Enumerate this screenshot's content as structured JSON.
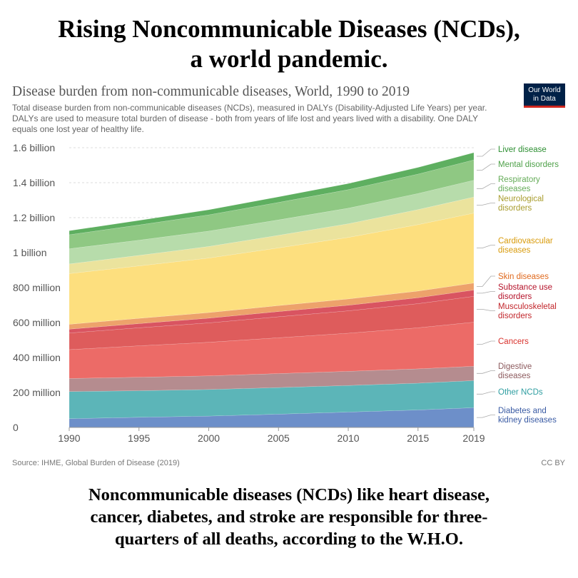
{
  "headline": {
    "line1": "Rising Noncommunicable Diseases (NCDs),",
    "line2": "a world pandemic."
  },
  "chart_title": "Disease burden from non-communicable diseases, World, 1990 to 2019",
  "chart_subtitle": "Total disease burden from non-communicable diseases (NCDs), measured in DALYs (Disability-Adjusted Life Years) per year. DALYs are used to measure total burden of disease - both from years of life lost and years lived with a disability. One DALY equals one lost year of healthy life.",
  "logo": {
    "line1": "Our World",
    "line2": "in Data",
    "bg_color": "#002147",
    "accent_color": "#ce261e"
  },
  "source": "Source: IHME, Global Burden of Disease (2019)",
  "license": "CC BY",
  "caption": {
    "line1": "Noncommunicable diseases (NCDs) like heart disease,",
    "line2": "cancer, diabetes, and stroke are responsible for three-",
    "line3": "quarters of all deaths, according to the W.H.O."
  },
  "chart_data": {
    "type": "area",
    "stacked": true,
    "x": [
      1990,
      1995,
      2000,
      2005,
      2010,
      2015,
      2019
    ],
    "xticks": [
      "1990",
      "1995",
      "2000",
      "2005",
      "2010",
      "2015",
      "2019"
    ],
    "ylim": [
      0,
      1600000000
    ],
    "yticks": [
      {
        "value": 0,
        "label": "0"
      },
      {
        "value": 200000000,
        "label": "200 million"
      },
      {
        "value": 400000000,
        "label": "400 million"
      },
      {
        "value": 600000000,
        "label": "600 million"
      },
      {
        "value": 800000000,
        "label": "800 million"
      },
      {
        "value": 1000000000,
        "label": "1 billion"
      },
      {
        "value": 1200000000,
        "label": "1.2 billion"
      },
      {
        "value": 1400000000,
        "label": "1.4 billion"
      },
      {
        "value": 1600000000,
        "label": "1.6 billion"
      }
    ],
    "grid": true,
    "legend_position": "right",
    "series": [
      {
        "name": "Diabetes and kidney diseases",
        "color": "#6d8fc9",
        "label_color": "#3a5ba4",
        "values": [
          50000000,
          58000000,
          65000000,
          76000000,
          88000000,
          100000000,
          113000000
        ]
      },
      {
        "name": "Other NCDs",
        "color": "#5cb5b8",
        "label_color": "#2f9ea1",
        "values": [
          155000000,
          152000000,
          152000000,
          152000000,
          152000000,
          153000000,
          155000000
        ]
      },
      {
        "name": "Digestive diseases",
        "color": "#b58c8f",
        "label_color": "#8d5b5e",
        "values": [
          75000000,
          77000000,
          78000000,
          80000000,
          81000000,
          82000000,
          82000000
        ]
      },
      {
        "name": "Cancers",
        "color": "#ec6b67",
        "label_color": "#d9322d",
        "values": [
          165000000,
          180000000,
          192000000,
          205000000,
          218000000,
          235000000,
          252000000
        ]
      },
      {
        "name": "Musculoskeletal disorders",
        "color": "#de5c5c",
        "label_color": "#c2272c",
        "values": [
          95000000,
          103000000,
          111000000,
          120000000,
          128000000,
          138000000,
          148000000
        ]
      },
      {
        "name": "Substance use disorders",
        "color": "#d95461",
        "label_color": "#b5132a",
        "values": [
          22000000,
          24000000,
          27000000,
          30000000,
          32000000,
          34000000,
          36000000
        ]
      },
      {
        "name": "Skin diseases",
        "color": "#eda26b",
        "label_color": "#e0691d",
        "values": [
          28000000,
          30000000,
          32000000,
          34000000,
          36000000,
          38000000,
          40000000
        ]
      },
      {
        "name": "Cardiovascular diseases",
        "color": "#fddf7e",
        "label_color": "#d99b0b",
        "values": [
          290000000,
          300000000,
          312000000,
          330000000,
          352000000,
          380000000,
          400000000
        ]
      },
      {
        "name": "Neurological disorders",
        "color": "#ebe39d",
        "label_color": "#a89c2c",
        "values": [
          55000000,
          60000000,
          66000000,
          72000000,
          78000000,
          86000000,
          92000000
        ]
      },
      {
        "name": "Respiratory diseases",
        "color": "#b7dcab",
        "label_color": "#65ac58",
        "values": [
          87000000,
          87000000,
          88000000,
          88000000,
          89000000,
          92000000,
          96000000
        ]
      },
      {
        "name": "Mental disorders",
        "color": "#8fc883",
        "label_color": "#4fa14a",
        "values": [
          80000000,
          87000000,
          93000000,
          100000000,
          106000000,
          111000000,
          116000000
        ]
      },
      {
        "name": "Liver disease",
        "color": "#5eaf60",
        "label_color": "#2d8f32",
        "values": [
          23000000,
          26000000,
          29000000,
          32000000,
          35000000,
          38000000,
          42000000
        ]
      }
    ]
  }
}
